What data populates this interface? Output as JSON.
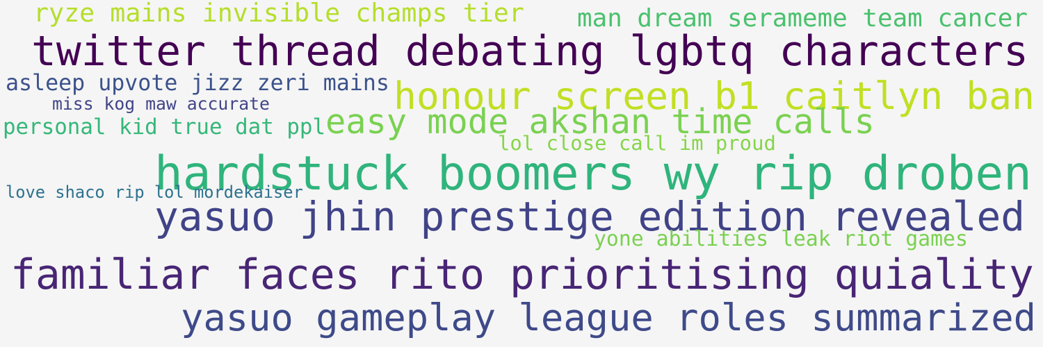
{
  "phrases": [
    {
      "text": "ryze mains invisible champs tier",
      "color": "#b5de2b"
    },
    {
      "text": "man dream serameme team cancer",
      "color": "#4ac16d"
    },
    {
      "text": "twitter thread debating lgbtq characters",
      "color": "#440154"
    },
    {
      "text": "asleep upvote jizz zeri mains",
      "color": "#3b528b"
    },
    {
      "text": "honour screen b1 caitlyn ban",
      "color": "#c2df23"
    },
    {
      "text": "miss kog maw accurate",
      "color": "#414487"
    },
    {
      "text": "personal kid true dat ppl",
      "color": "#35b779"
    },
    {
      "text": "easy mode akshan time calls",
      "color": "#7ad151"
    },
    {
      "text": "lol close call im proud",
      "color": "#86d549"
    },
    {
      "text": "hardstuck boomers wy rip droben",
      "color": "#2fb47c"
    },
    {
      "text": "love shaco rip lol mordekaiser",
      "color": "#2c728e"
    },
    {
      "text": "yasuo jhin prestige edition revealed",
      "color": "#404387"
    },
    {
      "text": "yone abilities leak riot games",
      "color": "#7ad151"
    },
    {
      "text": "familiar faces rito prioritising quiality",
      "color": "#482575"
    },
    {
      "text": "yasuo gameplay league roles summarized",
      "color": "#3e4a89"
    }
  ]
}
